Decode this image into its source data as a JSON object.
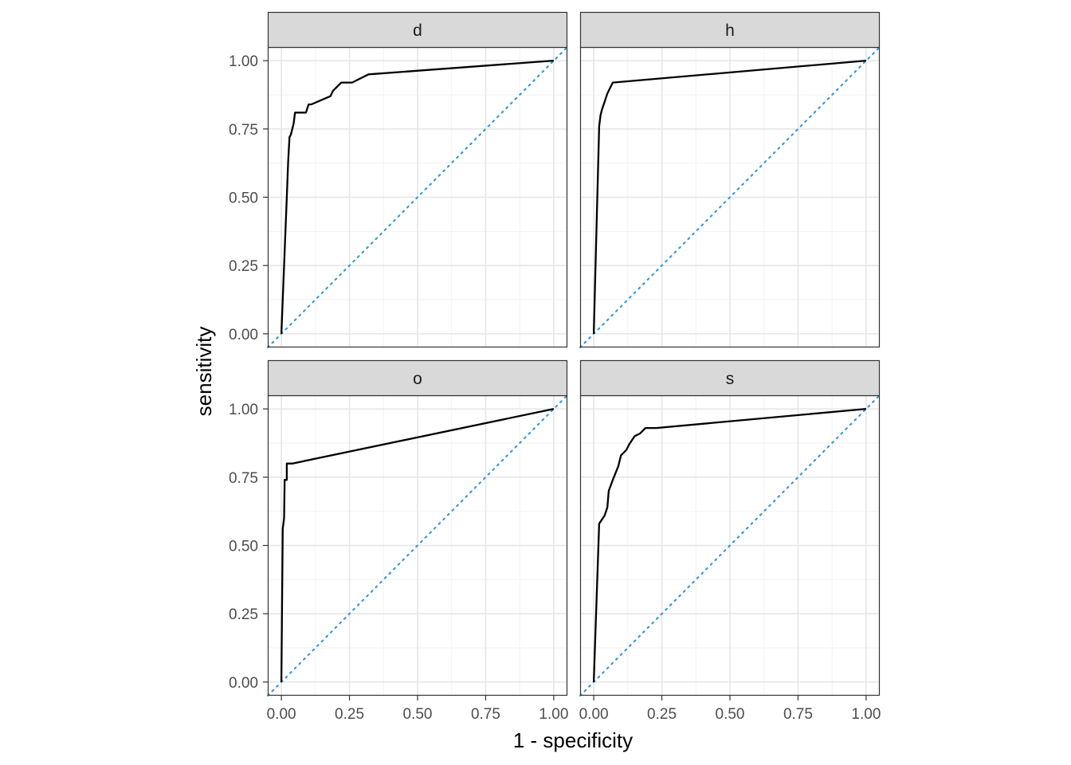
{
  "chart_data": {
    "type": "line",
    "xlabel": "1 - specificity",
    "ylabel": "sensitivity",
    "xlim": [
      -0.05,
      1.05
    ],
    "ylim": [
      -0.05,
      1.05
    ],
    "x_ticks": [
      "0.00",
      "0.25",
      "0.50",
      "0.75",
      "1.00"
    ],
    "y_ticks": [
      "0.00",
      "0.25",
      "0.50",
      "0.75",
      "1.00"
    ],
    "grid": true,
    "reference_line": {
      "type": "diagonal",
      "style": "dotted",
      "color": "#3a9ad9"
    },
    "curve_color": "#000000",
    "panels": [
      {
        "label": "d",
        "points": [
          [
            0.0,
            0.0
          ],
          [
            0.02,
            0.5
          ],
          [
            0.025,
            0.63
          ],
          [
            0.03,
            0.72
          ],
          [
            0.035,
            0.73
          ],
          [
            0.04,
            0.75
          ],
          [
            0.045,
            0.77
          ],
          [
            0.05,
            0.81
          ],
          [
            0.08,
            0.81
          ],
          [
            0.09,
            0.81
          ],
          [
            0.1,
            0.84
          ],
          [
            0.11,
            0.84
          ],
          [
            0.18,
            0.87
          ],
          [
            0.19,
            0.89
          ],
          [
            0.21,
            0.91
          ],
          [
            0.22,
            0.92
          ],
          [
            0.26,
            0.92
          ],
          [
            0.28,
            0.93
          ],
          [
            0.32,
            0.95
          ],
          [
            1.0,
            1.0
          ]
        ]
      },
      {
        "label": "h",
        "points": [
          [
            0.0,
            0.0
          ],
          [
            0.02,
            0.76
          ],
          [
            0.025,
            0.8
          ],
          [
            0.03,
            0.82
          ],
          [
            0.04,
            0.85
          ],
          [
            0.05,
            0.88
          ],
          [
            0.06,
            0.9
          ],
          [
            0.07,
            0.92
          ],
          [
            1.0,
            1.0
          ]
        ]
      },
      {
        "label": "o",
        "points": [
          [
            0.0,
            0.0
          ],
          [
            0.005,
            0.56
          ],
          [
            0.01,
            0.6
          ],
          [
            0.012,
            0.74
          ],
          [
            0.02,
            0.74
          ],
          [
            0.02,
            0.8
          ],
          [
            0.04,
            0.8
          ],
          [
            1.0,
            1.0
          ]
        ]
      },
      {
        "label": "s",
        "points": [
          [
            0.0,
            0.0
          ],
          [
            0.02,
            0.58
          ],
          [
            0.04,
            0.61
          ],
          [
            0.05,
            0.64
          ],
          [
            0.055,
            0.7
          ],
          [
            0.07,
            0.74
          ],
          [
            0.09,
            0.79
          ],
          [
            0.1,
            0.83
          ],
          [
            0.12,
            0.85
          ],
          [
            0.13,
            0.87
          ],
          [
            0.15,
            0.9
          ],
          [
            0.17,
            0.91
          ],
          [
            0.19,
            0.93
          ],
          [
            0.23,
            0.93
          ],
          [
            1.0,
            1.0
          ]
        ]
      }
    ]
  }
}
